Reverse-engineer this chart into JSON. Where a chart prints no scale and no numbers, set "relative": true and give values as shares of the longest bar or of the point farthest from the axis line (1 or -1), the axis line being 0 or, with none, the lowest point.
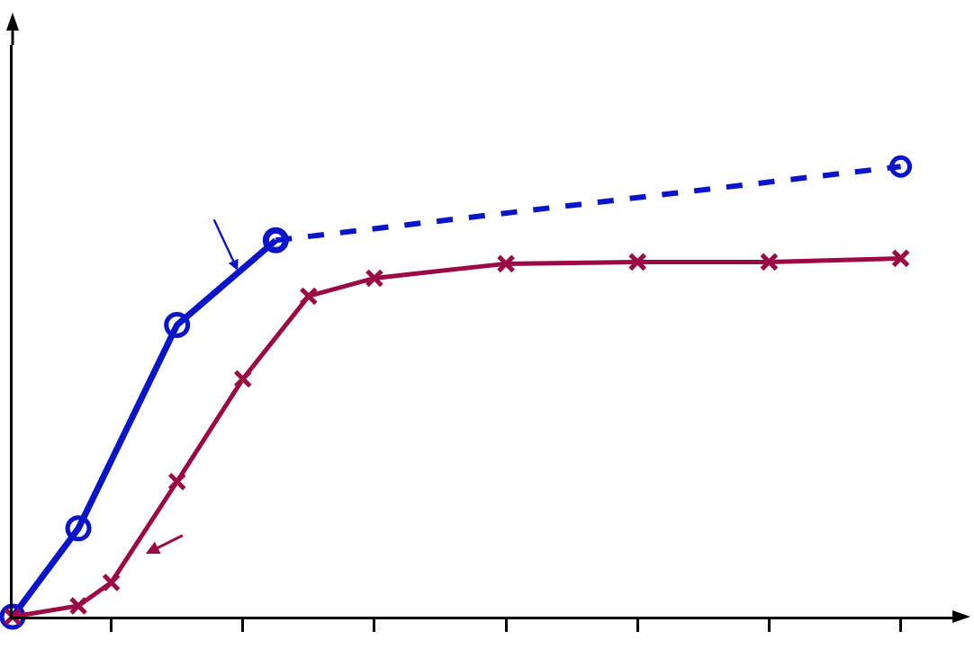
{
  "chart_data": {
    "type": "line",
    "relative": true,
    "categories": [
      null,
      null,
      null,
      null,
      null,
      null,
      null,
      null,
      null,
      null,
      null,
      null,
      null,
      null,
      null,
      null,
      null,
      null,
      null,
      null,
      null,
      null,
      null,
      null,
      null,
      null,
      null,
      null,
      null
    ],
    "series": [
      {
        "color": "#0a14c8",
        "values": [
          0,
          null,
          0.196,
          null,
          null,
          0.648,
          null,
          null,
          0.836,
          null,
          null,
          null,
          null,
          null,
          null,
          null,
          null,
          null,
          null,
          null,
          null,
          null,
          null,
          null,
          null,
          null,
          null,
          null,
          null
        ],
        "marker": "circle",
        "line_style": "solid"
      },
      {
        "color": "#0a14c8",
        "values": [
          null,
          null,
          null,
          null,
          null,
          null,
          null,
          null,
          0.836,
          null,
          null,
          null,
          null,
          null,
          null,
          null,
          null,
          null,
          null,
          null,
          null,
          null,
          null,
          null,
          null,
          null,
          null,
          1,
          null
        ],
        "marker": "circle",
        "line_style": "dashed"
      },
      {
        "color": "#9c0a46",
        "values": [
          0,
          null,
          0.024,
          0.076,
          null,
          0.3,
          null,
          0.528,
          null,
          0.712,
          null,
          0.752,
          null,
          null,
          null,
          0.784,
          null,
          null,
          null,
          0.788,
          null,
          null,
          null,
          0.788,
          null,
          null,
          null,
          0.796,
          null
        ],
        "marker": "cross",
        "line_style": "solid"
      }
    ],
    "grid": false
  }
}
